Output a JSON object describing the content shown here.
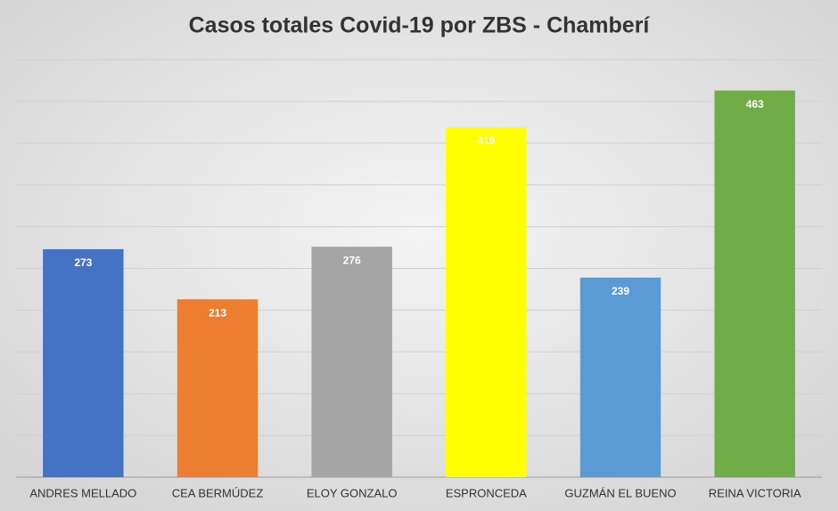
{
  "chart_data": {
    "type": "bar",
    "title": "Casos totales Covid-19 por ZBS - Chamberí",
    "categories": [
      "ANDRES MELLADO",
      "CEA BERMÚDEZ",
      "ELOY GONZALO",
      "ESPRONCEDA",
      "GUZMÁN EL BUENO",
      "REINA VICTORIA"
    ],
    "values": [
      273,
      213,
      276,
      419,
      239,
      463
    ],
    "colors": [
      "#4472c4",
      "#ed7d31",
      "#a5a5a5",
      "#ffff00",
      "#5b9bd5",
      "#70ad47"
    ],
    "ylim": [
      0,
      500
    ],
    "yticks": [
      0,
      50,
      100,
      150,
      200,
      250,
      300,
      350,
      400,
      450,
      500
    ],
    "grid": true
  }
}
